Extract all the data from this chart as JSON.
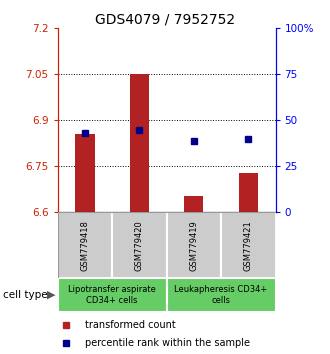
{
  "title": "GDS4079 / 7952752",
  "samples": [
    "GSM779418",
    "GSM779420",
    "GSM779419",
    "GSM779421"
  ],
  "red_values": [
    6.855,
    7.05,
    6.655,
    6.73
  ],
  "blue_values_pct": [
    43,
    45,
    39,
    40
  ],
  "ylim_left": [
    6.6,
    7.2
  ],
  "ylim_right": [
    0,
    100
  ],
  "yticks_left": [
    6.6,
    6.75,
    6.9,
    7.05,
    7.2
  ],
  "ytick_labels_left": [
    "6.6",
    "6.75",
    "6.9",
    "7.05",
    "7.2"
  ],
  "yticks_right": [
    0,
    25,
    50,
    75,
    100
  ],
  "ytick_labels_right": [
    "0",
    "25",
    "50",
    "75",
    "100%"
  ],
  "hlines": [
    6.75,
    6.9,
    7.05
  ],
  "bar_color": "#b22222",
  "dot_color": "#00008b",
  "bar_bottom": 6.6,
  "bar_width": 0.35,
  "group1_label": "Lipotransfer aspirate\nCD34+ cells",
  "group2_label": "Leukapheresis CD34+\ncells",
  "group_color": "#66cc66",
  "cell_type_label": "cell type",
  "legend_red_label": "transformed count",
  "legend_blue_label": "percentile rank within the sample",
  "title_fontsize": 10,
  "tick_label_fontsize": 7.5,
  "sample_fontsize": 6,
  "group_fontsize": 6
}
